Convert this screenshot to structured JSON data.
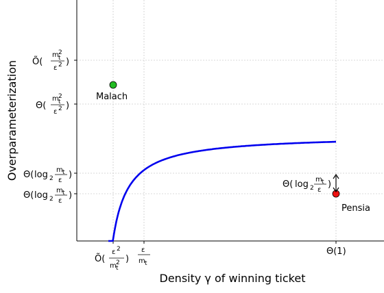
{
  "chart_data": {
    "type": "line",
    "xlabel": "Density γ of winning ticket",
    "ylabel": "Overparameterization",
    "grid": true,
    "x_ticks": [
      "Õ(ε²/m_t²)",
      "ε/m_t",
      "Θ(1)"
    ],
    "y_ticks": [
      "Õ(m_t²/ε²)",
      "Θ(m_t²/ε²)",
      "Θ(log₂ m_t/ε)",
      "Θ(log₂ m_t/ε)"
    ],
    "series": [
      {
        "name": "",
        "color": "#0000ee",
        "curve": "hyperbolic decrease ending at Θ(1)"
      }
    ],
    "points": [
      {
        "label": "Malach",
        "color": "#22bb22",
        "x": "Õ(ε²/m_t²)",
        "y": "between Θ and Õ(m_t²/ε²)"
      },
      {
        "label": "Pensia",
        "color": "#ee1111",
        "x": "Θ(1)",
        "y": "Θ(log₂ m_t/ε)"
      }
    ],
    "annotations": [
      {
        "text": "Θ(log₂ m_t/ε)",
        "kind": "double-arrow gap"
      }
    ]
  }
}
